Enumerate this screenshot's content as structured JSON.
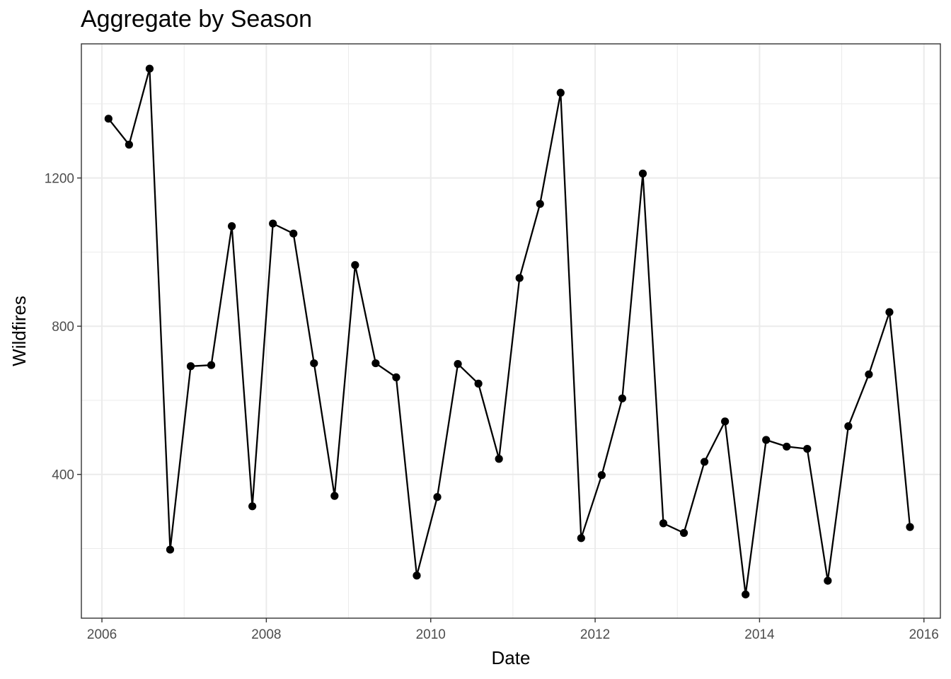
{
  "chart_data": {
    "type": "line",
    "title": "Aggregate by Season",
    "xlabel": "Date",
    "ylabel": "Wildfires",
    "x_ticks": [
      "2006",
      "2008",
      "2010",
      "2012",
      "2014",
      "2016"
    ],
    "y_ticks": [
      "400",
      "800",
      "1200"
    ],
    "xlim": [
      2005.75,
      2016.2
    ],
    "ylim": [
      12,
      1562
    ],
    "grid": true,
    "legend": "none",
    "colors": {
      "line": "#000000",
      "grid": "#ebebeb",
      "panel_border": "#333333"
    },
    "series": [
      {
        "x": [
          2006.08,
          2006.33,
          2006.58,
          2006.83,
          2007.08,
          2007.33,
          2007.58,
          2007.83,
          2008.08,
          2008.33,
          2008.58,
          2008.83,
          2009.08,
          2009.33,
          2009.58,
          2009.83,
          2010.08,
          2010.33,
          2010.58,
          2010.83,
          2011.08,
          2011.33,
          2011.58,
          2011.83,
          2012.08,
          2012.33,
          2012.58,
          2012.83,
          2013.08,
          2013.33,
          2013.58,
          2013.83,
          2014.08,
          2014.33,
          2014.58,
          2014.83,
          2015.08,
          2015.33,
          2015.58,
          2015.83
        ],
        "y": [
          1360,
          1290,
          1495,
          197,
          692,
          695,
          1070,
          314,
          1077,
          1050,
          700,
          342,
          965,
          700,
          662,
          127,
          339,
          698,
          645,
          442,
          930,
          1130,
          1430,
          228,
          398,
          605,
          1212,
          268,
          242,
          434,
          543,
          76,
          493,
          475,
          469,
          113,
          530,
          670,
          838,
          258
        ]
      }
    ]
  }
}
